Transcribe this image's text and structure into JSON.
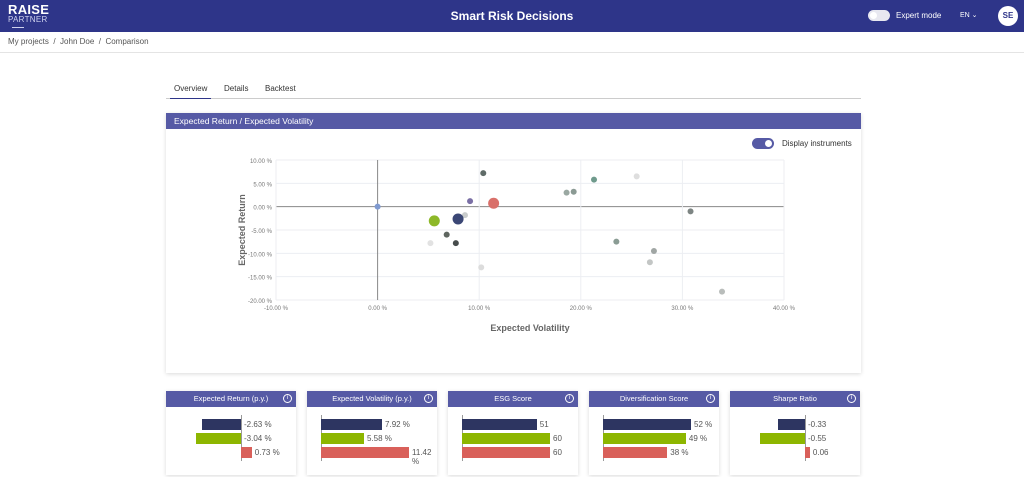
{
  "header": {
    "logo_top": "RAISE",
    "logo_bottom": "PARTNER",
    "title": "Smart Risk Decisions",
    "expert_mode": "Expert mode",
    "expert_on": false,
    "language": "EN ⌄",
    "avatar": "SE"
  },
  "breadcrumb": [
    "My projects",
    "/",
    "John Doe",
    "/",
    "Comparison"
  ],
  "tabs": [
    {
      "label": "Overview",
      "active": true
    },
    {
      "label": "Details"
    },
    {
      "label": "Backtest"
    }
  ],
  "chart_card": {
    "title": "Expected Return / Expected Volatility",
    "display_instruments": "Display instruments",
    "display_on": true
  },
  "colors": {
    "portfolio1": "#2d3561",
    "portfolio2": "#8db600",
    "portfolio3": "#d9605a",
    "header": "#2e3589",
    "card_header": "#565aa5"
  },
  "chart_data": {
    "type": "scatter",
    "xlabel": "Expected Volatility",
    "ylabel": "Expected Return",
    "xlim": [
      -10,
      40
    ],
    "ylim": [
      -20,
      10
    ],
    "xticks": [
      "-10.00 %",
      "0.00 %",
      "10.00 %",
      "20.00 %",
      "30.00 %",
      "40.00 %"
    ],
    "yticks": [
      "10.00 %",
      "5.00 %",
      "0.00 %",
      "-5.00 %",
      "-10.00 %",
      "-15.00 %",
      "-20.00 %"
    ],
    "portfolios": [
      {
        "x": 7.92,
        "y": -2.63,
        "color": "#3b4775"
      },
      {
        "x": 5.58,
        "y": -3.04,
        "color": "#8db828"
      },
      {
        "x": 11.42,
        "y": 0.73,
        "color": "#d9706a"
      }
    ],
    "instruments": [
      {
        "x": 0,
        "y": 0,
        "color": "#7f9ad0"
      },
      {
        "x": 9.1,
        "y": 1.2,
        "color": "#7a6fa5"
      },
      {
        "x": 10.4,
        "y": 7.2,
        "color": "#5f6b68"
      },
      {
        "x": 8.6,
        "y": -1.8,
        "color": "#c9cccc"
      },
      {
        "x": 6.8,
        "y": -6.0,
        "color": "#5f6660"
      },
      {
        "x": 7.7,
        "y": -7.8,
        "color": "#474c4c"
      },
      {
        "x": 5.2,
        "y": -7.8,
        "color": "#e2e2e2"
      },
      {
        "x": 10.2,
        "y": -13.0,
        "color": "#dcdcdc"
      },
      {
        "x": 18.6,
        "y": 3.0,
        "color": "#9aa8a2"
      },
      {
        "x": 19.3,
        "y": 3.2,
        "color": "#8b9a94"
      },
      {
        "x": 21.3,
        "y": 5.8,
        "color": "#6f9a8c"
      },
      {
        "x": 25.5,
        "y": 6.5,
        "color": "#dedede"
      },
      {
        "x": 30.8,
        "y": -1.0,
        "color": "#7d8583"
      },
      {
        "x": 23.5,
        "y": -7.5,
        "color": "#8a9c94"
      },
      {
        "x": 27.2,
        "y": -9.5,
        "color": "#a0a6a4"
      },
      {
        "x": 26.8,
        "y": -11.9,
        "color": "#c3c6c5"
      },
      {
        "x": 33.9,
        "y": -18.2,
        "color": "#b9bdbb"
      }
    ]
  },
  "metrics": [
    {
      "title": "Expected Return (p.y.)",
      "values": [
        -2.63,
        -3.04,
        0.73
      ],
      "labels": [
        "-2.63 %",
        "-3.04 %",
        "0.73 %"
      ]
    },
    {
      "title": "Expected Volatility (p.y.)",
      "values": [
        7.92,
        5.58,
        11.42
      ],
      "labels": [
        "7.92 %",
        "5.58 %",
        "11.42 %"
      ]
    },
    {
      "title": "ESG Score",
      "values": [
        51,
        60,
        60
      ],
      "labels": [
        "51",
        "60",
        "60"
      ]
    },
    {
      "title": "Diversification Score",
      "values": [
        52,
        49,
        38
      ],
      "labels": [
        "52 %",
        "49 %",
        "38 %"
      ]
    },
    {
      "title": "Sharpe Ratio",
      "values": [
        -0.33,
        -0.55,
        0.06
      ],
      "labels": [
        "-0.33",
        "-0.55",
        "0.06"
      ]
    }
  ]
}
